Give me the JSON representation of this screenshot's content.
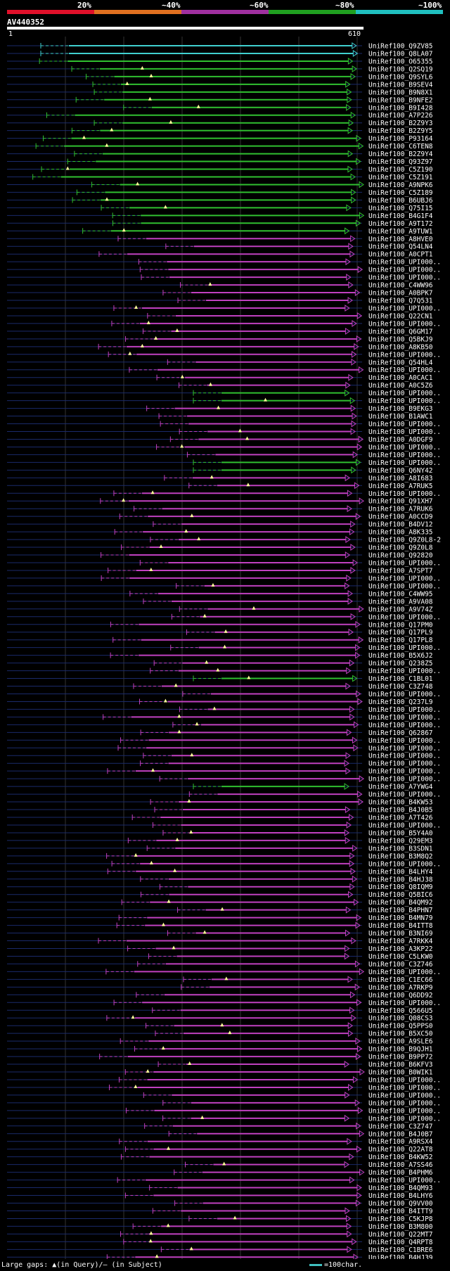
{
  "legend": {
    "labels": [
      "20%",
      "~40%",
      "~60%",
      "~80%",
      "~100%"
    ],
    "colors": [
      "#e0102a",
      "#e07020",
      "#a030a0",
      "#20a020",
      "#20c0c0"
    ]
  },
  "query": {
    "name": "AV440352",
    "start": "1",
    "end": "610"
  },
  "hits": [
    "UniRef100_Q9ZV85",
    "UniRef100_Q8LA07",
    "UniRef100_O65355",
    "UniRef100_Q2SQ19",
    "UniRef100_Q9SYL6",
    "UniRef100_B9SEV4",
    "UniRef100_B9N8X1",
    "UniRef100_B9NFE2",
    "UniRef100_B9I428",
    "UniRef100_A7P226",
    "UniRef100_B2Z9Y3",
    "UniRef100_B2Z9Y5",
    "UniRef100_P93164",
    "UniRef100_C6TEN8",
    "UniRef100_B2Z9Y4",
    "UniRef100_Q93Z97",
    "UniRef100_C5Z190",
    "UniRef100_C5Z191",
    "UniRef100_A9NPK6",
    "UniRef100_C5Z189",
    "UniRef100_B6UBJ6",
    "UniRef100_Q75I15",
    "UniRef100_B4G1F4",
    "UniRef100_A9T172",
    "UniRef100_A9TUW1",
    "UniRef100_A8HVE0",
    "UniRef100_Q54LN4",
    "UniRef100_A0CPT1",
    "UniRef100_UPI000..",
    "UniRef100_UPI000..",
    "UniRef100_UPI000..",
    "UniRef100_C4WW96",
    "UniRef100_A0BPK7",
    "UniRef100_Q7Q531",
    "UniRef100_UPI000..",
    "UniRef100_Q22CN1",
    "UniRef100_UPI000..",
    "UniRef100_Q6GM17",
    "UniRef100_Q5BKJ9",
    "UniRef100_A8KB50",
    "UniRef100_UPI000..",
    "UniRef100_Q54HL4",
    "UniRef100_UPI000..",
    "UniRef100_A0CAC1",
    "UniRef100_A0C5Z6",
    "UniRef100_UPI000..",
    "UniRef100_UPI000..",
    "UniRef100_B9EKG3",
    "UniRef100_B1AWC1",
    "UniRef100_UPI000..",
    "UniRef100_UPI000..",
    "UniRef100_A0DGF9",
    "UniRef100_UPI000..",
    "UniRef100_UPI000..",
    "UniRef100_UPI000..",
    "UniRef100_Q6NY42",
    "UniRef100_A8I683",
    "UniRef100_A7RUK5",
    "UniRef100_UPI000..",
    "UniRef100_Q91XH7",
    "UniRef100_A7RUK6",
    "UniRef100_A0CCD9",
    "UniRef100_B4DV12",
    "UniRef100_A8K335",
    "UniRef100_Q9Z0L8-2",
    "UniRef100_Q9Z0L8",
    "UniRef100_Q92820",
    "UniRef100_UPI000..",
    "UniRef100_A7SPT7",
    "UniRef100_UPI000..",
    "UniRef100_UPI000..",
    "UniRef100_C4WW95",
    "UniRef100_A9VA08",
    "UniRef100_A9V74Z",
    "UniRef100_UPI000..",
    "UniRef100_Q17PM0",
    "UniRef100_Q17PL9",
    "UniRef100_Q17PL8",
    "UniRef100_UPI000..",
    "UniRef100_B5X6J2",
    "UniRef100_Q238Z5",
    "UniRef100_UPI000..",
    "UniRef100_C1BL01",
    "UniRef100_C3Z748",
    "UniRef100_UPI000..",
    "UniRef100_Q237L9",
    "UniRef100_UPI000..",
    "UniRef100_UPI000..",
    "UniRef100_UPI000..",
    "UniRef100_Q62867",
    "UniRef100_UPI000..",
    "UniRef100_UPI000..",
    "UniRef100_UPI000..",
    "UniRef100_UPI000..",
    "UniRef100_UPI000..",
    "UniRef100_UPI000..",
    "UniRef100_A7YWG4",
    "UniRef100_UPI000..",
    "UniRef100_B4KW53",
    "UniRef100_B4J0B5",
    "UniRef100_A7T426",
    "UniRef100_UPI000..",
    "UniRef100_B5Y4A0",
    "UniRef100_Q29EM3",
    "UniRef100_B3SDN1",
    "UniRef100_B3M8Q2",
    "UniRef100_UPI000..",
    "UniRef100_B4LHY4",
    "UniRef100_B4HJ38",
    "UniRef100_Q8IQM9",
    "UniRef100_Q5BIC6",
    "UniRef100_B4QM92",
    "UniRef100_B4PHN7",
    "UniRef100_B4MN79",
    "UniRef100_B4ITT8",
    "UniRef100_B3NI69",
    "UniRef100_A7RKK4",
    "UniRef100_A3KP22",
    "UniRef100_C5LKW0",
    "UniRef100_C3Z746",
    "UniRef100_UPI000..",
    "UniRef100_C1EC66",
    "UniRef100_A7RKP9",
    "UniRef100_Q6DD92",
    "UniRef100_UPI000..",
    "UniRef100_Q566U5",
    "UniRef100_Q08CS3",
    "UniRef100_Q5PPS0",
    "UniRef100_B5XC50",
    "UniRef100_A9SLE6",
    "UniRef100_B9QJH1",
    "UniRef100_B9PP72",
    "UniRef100_B6KFV3",
    "UniRef100_B0WIK1",
    "UniRef100_UPI000..",
    "UniRef100_UPI000..",
    "UniRef100_UPI000..",
    "UniRef100_UPI000..",
    "UniRef100_UPI000..",
    "UniRef100_UPI000..",
    "UniRef100_C3Z747",
    "UniRef100_B4J0B7",
    "UniRef100_A9RSX4",
    "UniRef100_Q22AT8",
    "UniRef100_B4KW52",
    "UniRef100_A7SS46",
    "UniRef100_B4PHM6",
    "UniRef100_UPI000..",
    "UniRef100_B4QM93",
    "UniRef100_B4LHY6",
    "UniRef100_Q9VV00",
    "UniRef100_B4ITT9",
    "UniRef100_C5KJP8",
    "UniRef100_B3M800",
    "UniRef100_Q22MT7",
    "UniRef100_Q4RPT8",
    "UniRef100_C1BRE6",
    "UniRef100_B4HJ39"
  ],
  "footer": {
    "left": "Large gaps: ▲(in Query)/– (in Subject)",
    "right": "=100char."
  }
}
